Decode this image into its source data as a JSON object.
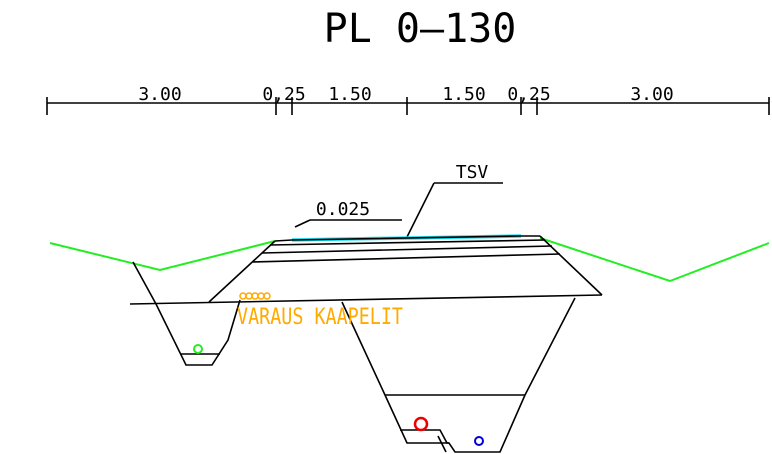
{
  "title": "PL 0–130",
  "dimensions": [
    "3.00",
    "0,25",
    "1.50",
    "1.50",
    "0,25",
    "3.00"
  ],
  "slope_label": "0.025",
  "surface_label": "TSV",
  "cable_label": "VARAUS KAAPELIT",
  "colors": {
    "lines": "#000000",
    "ground": "#22ee22",
    "surface": "#22ddee",
    "cable": "#ffaa00",
    "pipe_red": "#ee0000",
    "pipe_blue": "#0000dd",
    "pipe_green": "#22ee22"
  }
}
